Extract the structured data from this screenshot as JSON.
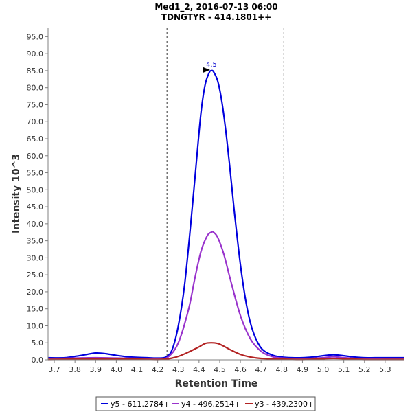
{
  "chart_data": {
    "type": "line",
    "title": "Med1_2, 2016-07-13 06:00",
    "subtitle": "TDNGTYR - 414.1801++",
    "xlabel": "Retention Time",
    "ylabel": "Intensity 10^3",
    "xlim": [
      3.67,
      5.39
    ],
    "ylim": [
      0,
      97.5
    ],
    "x_ticks": [
      "3.7",
      "3.8",
      "3.9",
      "4.0",
      "4.1",
      "4.2",
      "4.3",
      "4.4",
      "4.5",
      "4.6",
      "4.7",
      "4.8",
      "4.9",
      "5.0",
      "5.1",
      "5.2",
      "5.3"
    ],
    "y_ticks": [
      "0.0",
      "5.0",
      "10.0",
      "15.0",
      "20.0",
      "25.0",
      "30.0",
      "35.0",
      "40.0",
      "45.0",
      "50.0",
      "55.0",
      "60.0",
      "65.0",
      "70.0",
      "75.0",
      "80.0",
      "85.0",
      "90.0",
      "95.0"
    ],
    "peak_boundaries": [
      4.245,
      4.81
    ],
    "peak_annotation": {
      "x": 4.46,
      "y": 85.0,
      "label": "4.5"
    },
    "legend_position": "bottom",
    "series": [
      {
        "name": "y5 - 611.2784+",
        "color": "#0000dd",
        "x": [
          3.67,
          3.75,
          3.8,
          3.85,
          3.9,
          3.95,
          4.0,
          4.05,
          4.1,
          4.15,
          4.2,
          4.24,
          4.27,
          4.3,
          4.33,
          4.36,
          4.39,
          4.41,
          4.43,
          4.45,
          4.46,
          4.47,
          4.49,
          4.51,
          4.53,
          4.55,
          4.57,
          4.6,
          4.63,
          4.66,
          4.7,
          4.75,
          4.8,
          4.85,
          4.9,
          4.95,
          5.0,
          5.05,
          5.1,
          5.15,
          5.2,
          5.25,
          5.3,
          5.35,
          5.39
        ],
        "values": [
          0.6,
          0.6,
          1.0,
          1.5,
          2.0,
          1.8,
          1.3,
          0.9,
          0.7,
          0.6,
          0.5,
          0.8,
          3.0,
          10.0,
          22.0,
          40.0,
          60.0,
          73.0,
          81.0,
          84.5,
          85.0,
          84.7,
          82.0,
          76.0,
          67.0,
          56.0,
          44.0,
          28.0,
          16.0,
          8.5,
          3.5,
          1.5,
          0.8,
          0.6,
          0.6,
          0.8,
          1.2,
          1.5,
          1.2,
          0.8,
          0.6,
          0.6,
          0.6,
          0.6,
          0.6
        ]
      },
      {
        "name": "y4 - 496.2514+",
        "color": "#9933cc",
        "x": [
          3.67,
          3.8,
          3.9,
          4.0,
          4.1,
          4.2,
          4.25,
          4.3,
          4.35,
          4.38,
          4.41,
          4.44,
          4.46,
          4.47,
          4.49,
          4.52,
          4.55,
          4.6,
          4.65,
          4.7,
          4.75,
          4.8,
          4.9,
          5.0,
          5.05,
          5.1,
          5.2,
          5.3,
          5.39
        ],
        "values": [
          0.3,
          0.5,
          0.6,
          0.5,
          0.4,
          0.3,
          0.8,
          5.0,
          15.0,
          24.0,
          32.0,
          36.5,
          37.5,
          37.5,
          36.0,
          31.0,
          24.0,
          13.0,
          6.0,
          2.5,
          1.0,
          0.5,
          0.3,
          0.6,
          0.9,
          0.6,
          0.3,
          0.3,
          0.3
        ]
      },
      {
        "name": "y3 - 439.2300+",
        "color": "#b22222",
        "x": [
          3.67,
          3.8,
          3.9,
          4.0,
          4.1,
          4.2,
          4.25,
          4.3,
          4.35,
          4.4,
          4.43,
          4.46,
          4.49,
          4.52,
          4.55,
          4.6,
          4.65,
          4.7,
          4.8,
          4.9,
          5.0,
          5.05,
          5.1,
          5.2,
          5.3,
          5.39
        ],
        "values": [
          0.1,
          0.2,
          0.3,
          0.3,
          0.2,
          0.1,
          0.3,
          1.0,
          2.3,
          3.8,
          4.8,
          5.0,
          4.8,
          4.0,
          3.0,
          1.6,
          0.8,
          0.4,
          0.2,
          0.1,
          0.3,
          0.4,
          0.3,
          0.1,
          0.1,
          0.1
        ]
      }
    ]
  }
}
